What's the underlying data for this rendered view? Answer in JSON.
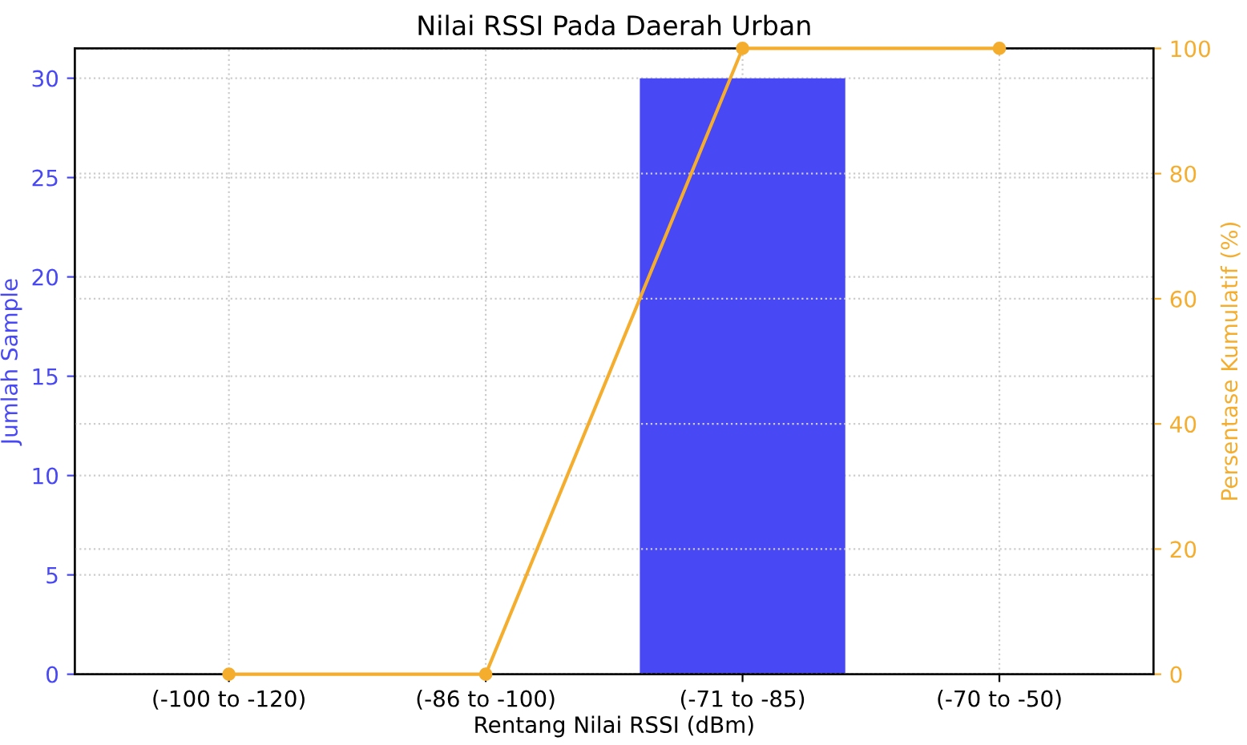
{
  "chart_data": {
    "type": "bar",
    "title": "Nilai RSSI Pada Daerah Urban",
    "xlabel": "Rentang Nilai RSSI (dBm)",
    "ylabel": "Jumlah Sample",
    "y2label": "Persentase Kumulatif (%)",
    "categories": [
      "(-100 to -120)",
      "(-86 to -100)",
      "(-71 to -85)",
      "(-70 to -50)"
    ],
    "series": [
      {
        "color": "#4848f4",
        "values": [
          0,
          0,
          30,
          0
        ]
      },
      {
        "type": "line",
        "axis": "y2",
        "color": "#f5ad2e",
        "marker": "circle",
        "values": [
          0,
          0,
          100,
          100
        ]
      }
    ],
    "ylim": [
      0,
      31.5
    ],
    "yticks": [
      0,
      5,
      10,
      15,
      20,
      25,
      30
    ],
    "y2lim": [
      0,
      100
    ],
    "y2ticks": [
      0,
      20,
      40,
      60,
      80,
      100
    ],
    "grid": true
  }
}
